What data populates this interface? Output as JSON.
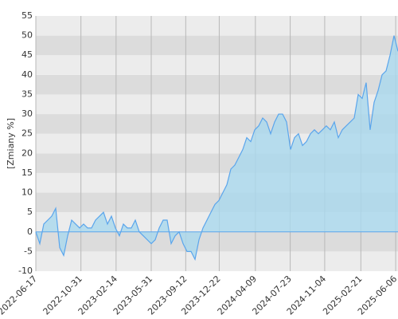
{
  "chart_data": {
    "type": "area",
    "y_label": "[Zmiany %]",
    "x": [
      "2022-06-17",
      "2022-06-29",
      "2022-07-11",
      "2022-07-23",
      "2022-08-04",
      "2022-08-16",
      "2022-08-28",
      "2022-09-09",
      "2022-09-21",
      "2022-10-03",
      "2022-10-15",
      "2022-10-27",
      "2022-11-08",
      "2022-11-20",
      "2022-12-02",
      "2022-12-14",
      "2022-12-26",
      "2023-01-07",
      "2023-01-19",
      "2023-01-31",
      "2023-02-12",
      "2023-02-24",
      "2023-03-08",
      "2023-03-20",
      "2023-04-01",
      "2023-04-13",
      "2023-04-25",
      "2023-05-07",
      "2023-05-19",
      "2023-05-31",
      "2023-06-12",
      "2023-06-24",
      "2023-07-06",
      "2023-07-18",
      "2023-07-30",
      "2023-08-11",
      "2023-08-23",
      "2023-09-04",
      "2023-09-16",
      "2023-09-28",
      "2023-10-10",
      "2023-10-22",
      "2023-11-03",
      "2023-11-15",
      "2023-11-27",
      "2023-12-09",
      "2023-12-21",
      "2024-01-02",
      "2024-01-14",
      "2024-01-26",
      "2024-02-07",
      "2024-02-19",
      "2024-03-02",
      "2024-03-14",
      "2024-03-26",
      "2024-04-07",
      "2024-04-19",
      "2024-05-01",
      "2024-05-13",
      "2024-05-25",
      "2024-06-06",
      "2024-06-18",
      "2024-06-30",
      "2024-07-12",
      "2024-07-24",
      "2024-08-05",
      "2024-08-17",
      "2024-08-29",
      "2024-09-10",
      "2024-09-22",
      "2024-10-04",
      "2024-10-16",
      "2024-10-28",
      "2024-11-09",
      "2024-11-21",
      "2024-12-03",
      "2024-12-15",
      "2024-12-27",
      "2025-01-08",
      "2025-01-20",
      "2025-02-01",
      "2025-02-13",
      "2025-02-25",
      "2025-03-09",
      "2025-03-21",
      "2025-04-02",
      "2025-04-14",
      "2025-04-26",
      "2025-05-08",
      "2025-05-20",
      "2025-06-01",
      "2025-06-13"
    ],
    "values": [
      0,
      -3,
      2,
      3,
      4,
      6,
      -4,
      -6,
      -1,
      3,
      2,
      1,
      2,
      1,
      1,
      3,
      4,
      5,
      2,
      4,
      1,
      -1,
      2,
      1,
      1,
      3,
      0,
      -1,
      -2,
      -3,
      -2,
      1,
      3,
      3,
      -3,
      -1,
      0,
      -3,
      -5,
      -5,
      -7,
      -2,
      1,
      3,
      5,
      7,
      8,
      10,
      12,
      16,
      17,
      19,
      21,
      24,
      23,
      26,
      27,
      29,
      28,
      25,
      28,
      30,
      30,
      28,
      21,
      24,
      25,
      22,
      23,
      25,
      26,
      25,
      26,
      27,
      26,
      28,
      24,
      26,
      27,
      28,
      29,
      35,
      34,
      38,
      26,
      33,
      36,
      40,
      41,
      45,
      50,
      46
    ],
    "color": "#5aa5ec",
    "fill": "#a9d8ee",
    "xlim": [
      "2022-06-17",
      "2025-06-13"
    ],
    "xticks": [
      "2022-06-17",
      "2022-10-31",
      "2023-02-14",
      "2023-05-31",
      "2023-09-12",
      "2023-12-22",
      "2024-04-09",
      "2024-07-23",
      "2024-11-04",
      "2025-02-21",
      "2025-06-06"
    ],
    "ylim": [
      -10,
      55
    ],
    "yticks": [
      -10,
      -5,
      0,
      5,
      10,
      15,
      20,
      25,
      30,
      35,
      40,
      45,
      50,
      55
    ],
    "grid": true
  }
}
